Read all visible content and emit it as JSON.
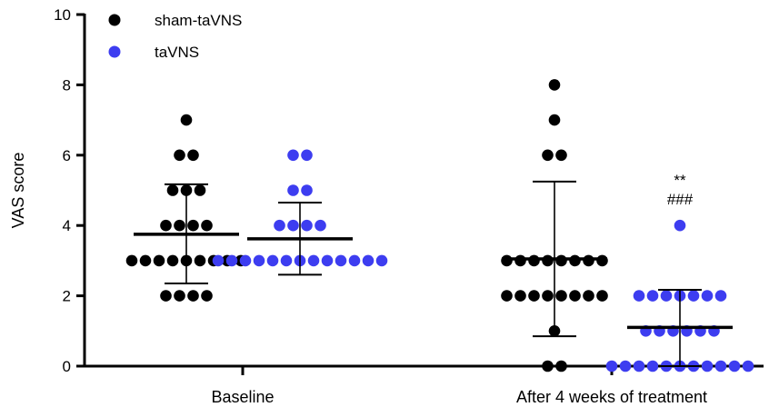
{
  "chart_data": {
    "type": "scatter",
    "ylabel": "VAS score",
    "ylim": [
      0,
      10
    ],
    "yticks": [
      0,
      2,
      4,
      6,
      8,
      10
    ],
    "categories": [
      "Baseline",
      "After 4 weeks of treatment"
    ],
    "legend_position": "top-left",
    "series": [
      {
        "name": "sham-taVNS",
        "color": "#000000",
        "groups": [
          {
            "category": "Baseline",
            "values": [
              2,
              2,
              2,
              2,
              3,
              3,
              3,
              3,
              3,
              3,
              3,
              3,
              3,
              4,
              4,
              4,
              4,
              5,
              5,
              5,
              6,
              6,
              7
            ],
            "mean": 3.75,
            "sd_low": 2.35,
            "sd_high": 5.17
          },
          {
            "category": "After 4 weeks of treatment",
            "values": [
              0,
              0,
              1,
              2,
              2,
              2,
              2,
              2,
              2,
              2,
              2,
              3,
              3,
              3,
              3,
              3,
              3,
              3,
              3,
              6,
              6,
              7,
              8
            ],
            "mean": 3.05,
            "sd_low": 0.85,
            "sd_high": 5.25
          }
        ]
      },
      {
        "name": "taVNS",
        "color": "#3d3df0",
        "groups": [
          {
            "category": "Baseline",
            "values": [
              3,
              3,
              3,
              3,
              3,
              3,
              3,
              3,
              3,
              3,
              3,
              3,
              3,
              4,
              4,
              4,
              4,
              5,
              5,
              6,
              6
            ],
            "mean": 3.62,
            "sd_low": 2.6,
            "sd_high": 4.65
          },
          {
            "category": "After 4 weeks of treatment",
            "values": [
              0,
              0,
              0,
              0,
              0,
              0,
              0,
              0,
              0,
              0,
              0,
              1,
              1,
              1,
              1,
              1,
              1,
              2,
              2,
              2,
              2,
              2,
              2,
              2,
              4
            ],
            "mean": 1.1,
            "sd_low": 0,
            "sd_high": 2.17
          }
        ]
      }
    ],
    "annotations": [
      {
        "text": "**",
        "series": "taVNS",
        "category": "After 4 weeks of treatment",
        "y": 5.3
      },
      {
        "text": "###",
        "series": "taVNS",
        "category": "After 4 weeks of treatment",
        "y": 4.75
      }
    ]
  }
}
